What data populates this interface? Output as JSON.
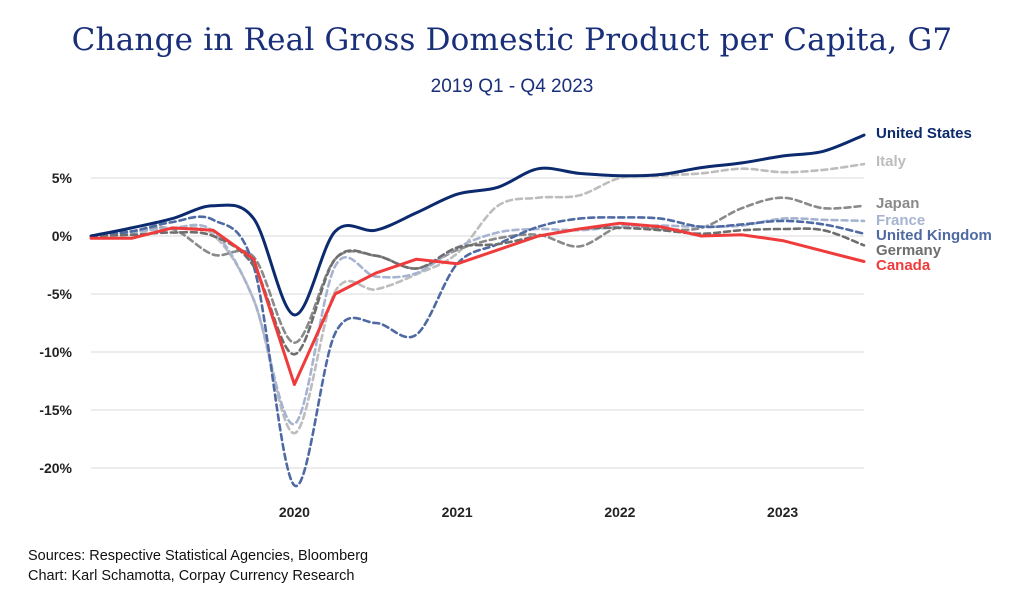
{
  "header": {
    "title": "Change in Real Gross Domestic Product per Capita, G7",
    "subtitle": "2019 Q1 - Q4 2023"
  },
  "footer": {
    "sources": "Sources: Respective Statistical Agencies, Bloomberg",
    "credit": "Chart: Karl Schamotta, Corpay Currency Research"
  },
  "chart_data": {
    "type": "line",
    "title": "Change in Real Gross Domestic Product per Capita, G7",
    "subtitle": "2019 Q1 - Q4 2023",
    "xlabel": "",
    "ylabel": "",
    "x": [
      "2019 Q1",
      "2019 Q2",
      "2019 Q3",
      "2019 Q4",
      "2020 Q1",
      "2020 Q2",
      "2020 Q3",
      "2020 Q4",
      "2021 Q1",
      "2021 Q2",
      "2021 Q3",
      "2021 Q4",
      "2022 Q1",
      "2022 Q2",
      "2022 Q3",
      "2022 Q4",
      "2023 Q1",
      "2023 Q2",
      "2023 Q3",
      "2023 Q4"
    ],
    "x_tick_labels": [
      "2020",
      "2021",
      "2022",
      "2023"
    ],
    "x_tick_positions": [
      "2020 Q2",
      "2021 Q2",
      "2022 Q2",
      "2023 Q2"
    ],
    "y_ticks": [
      5,
      0,
      -5,
      -10,
      -15,
      -20
    ],
    "y_tick_labels": [
      "5%",
      "0%",
      "-5%",
      "-10%",
      "-15%",
      "-20%"
    ],
    "ylim": [
      -21.5,
      9.5
    ],
    "grid": "horizontal",
    "legend": "labels at right end of lines",
    "series": [
      {
        "name": "Italy",
        "color": "#bdbdbd",
        "dash": "dashed",
        "values": [
          0,
          0.4,
          0.6,
          0.1,
          -5.5,
          -17.0,
          -4.8,
          -4.6,
          -3.3,
          -1.5,
          2.6,
          3.3,
          3.5,
          5.0,
          5.2,
          5.4,
          5.8,
          5.5,
          5.7,
          6.2
        ]
      },
      {
        "name": "Japan",
        "color": "#8a8a8a",
        "dash": "dashed",
        "values": [
          0,
          0.4,
          0.6,
          -1.6,
          -1.8,
          -9.2,
          -2.0,
          -1.7,
          -2.8,
          -1.2,
          -0.2,
          0.1,
          -0.9,
          0.8,
          0.6,
          0.7,
          2.4,
          3.3,
          2.4,
          2.6
        ]
      },
      {
        "name": "France",
        "color": "#a7b4d1",
        "dash": "dashed",
        "values": [
          0,
          0.3,
          0.7,
          0.4,
          -5.5,
          -16.2,
          -2.6,
          -3.5,
          -3.2,
          -1.0,
          0.3,
          0.6,
          0.5,
          0.8,
          0.9,
          0.8,
          0.9,
          1.5,
          1.4,
          1.3
        ]
      },
      {
        "name": "United Kingdom",
        "color": "#4f6aa3",
        "dash": "dashed",
        "values": [
          0,
          0.4,
          1.2,
          1.4,
          -2.6,
          -21.5,
          -8.4,
          -7.5,
          -8.5,
          -2.4,
          -0.7,
          0.8,
          1.5,
          1.6,
          1.5,
          0.8,
          1.0,
          1.3,
          1.0,
          0.2
        ]
      },
      {
        "name": "Germany",
        "color": "#6e6e6e",
        "dash": "dashed",
        "values": [
          0,
          0.1,
          0.3,
          0.0,
          -2.6,
          -10.2,
          -2.0,
          -1.7,
          -2.8,
          -1.0,
          -0.7,
          0.0,
          0.6,
          0.7,
          0.5,
          0.2,
          0.5,
          0.6,
          0.5,
          -0.8
        ]
      },
      {
        "name": "United States",
        "color": "#0c2a6e",
        "dash": "solid",
        "values": [
          0,
          0.7,
          1.5,
          2.6,
          1.5,
          -6.8,
          0.4,
          0.5,
          2.0,
          3.6,
          4.2,
          5.8,
          5.4,
          5.2,
          5.3,
          5.9,
          6.3,
          6.9,
          7.3,
          8.7
        ]
      },
      {
        "name": "Canada",
        "color": "#ef3b3b",
        "dash": "solid",
        "values": [
          -0.2,
          -0.2,
          0.7,
          0.5,
          -2.0,
          -12.8,
          -5.0,
          -3.2,
          -2.0,
          -2.4,
          -1.2,
          0.0,
          0.6,
          1.1,
          0.8,
          0.0,
          0.1,
          -0.4,
          -1.3,
          -2.2
        ]
      }
    ],
    "label_order": [
      "United States",
      "Italy",
      "Japan",
      "France",
      "United Kingdom",
      "Germany",
      "Canada"
    ]
  }
}
